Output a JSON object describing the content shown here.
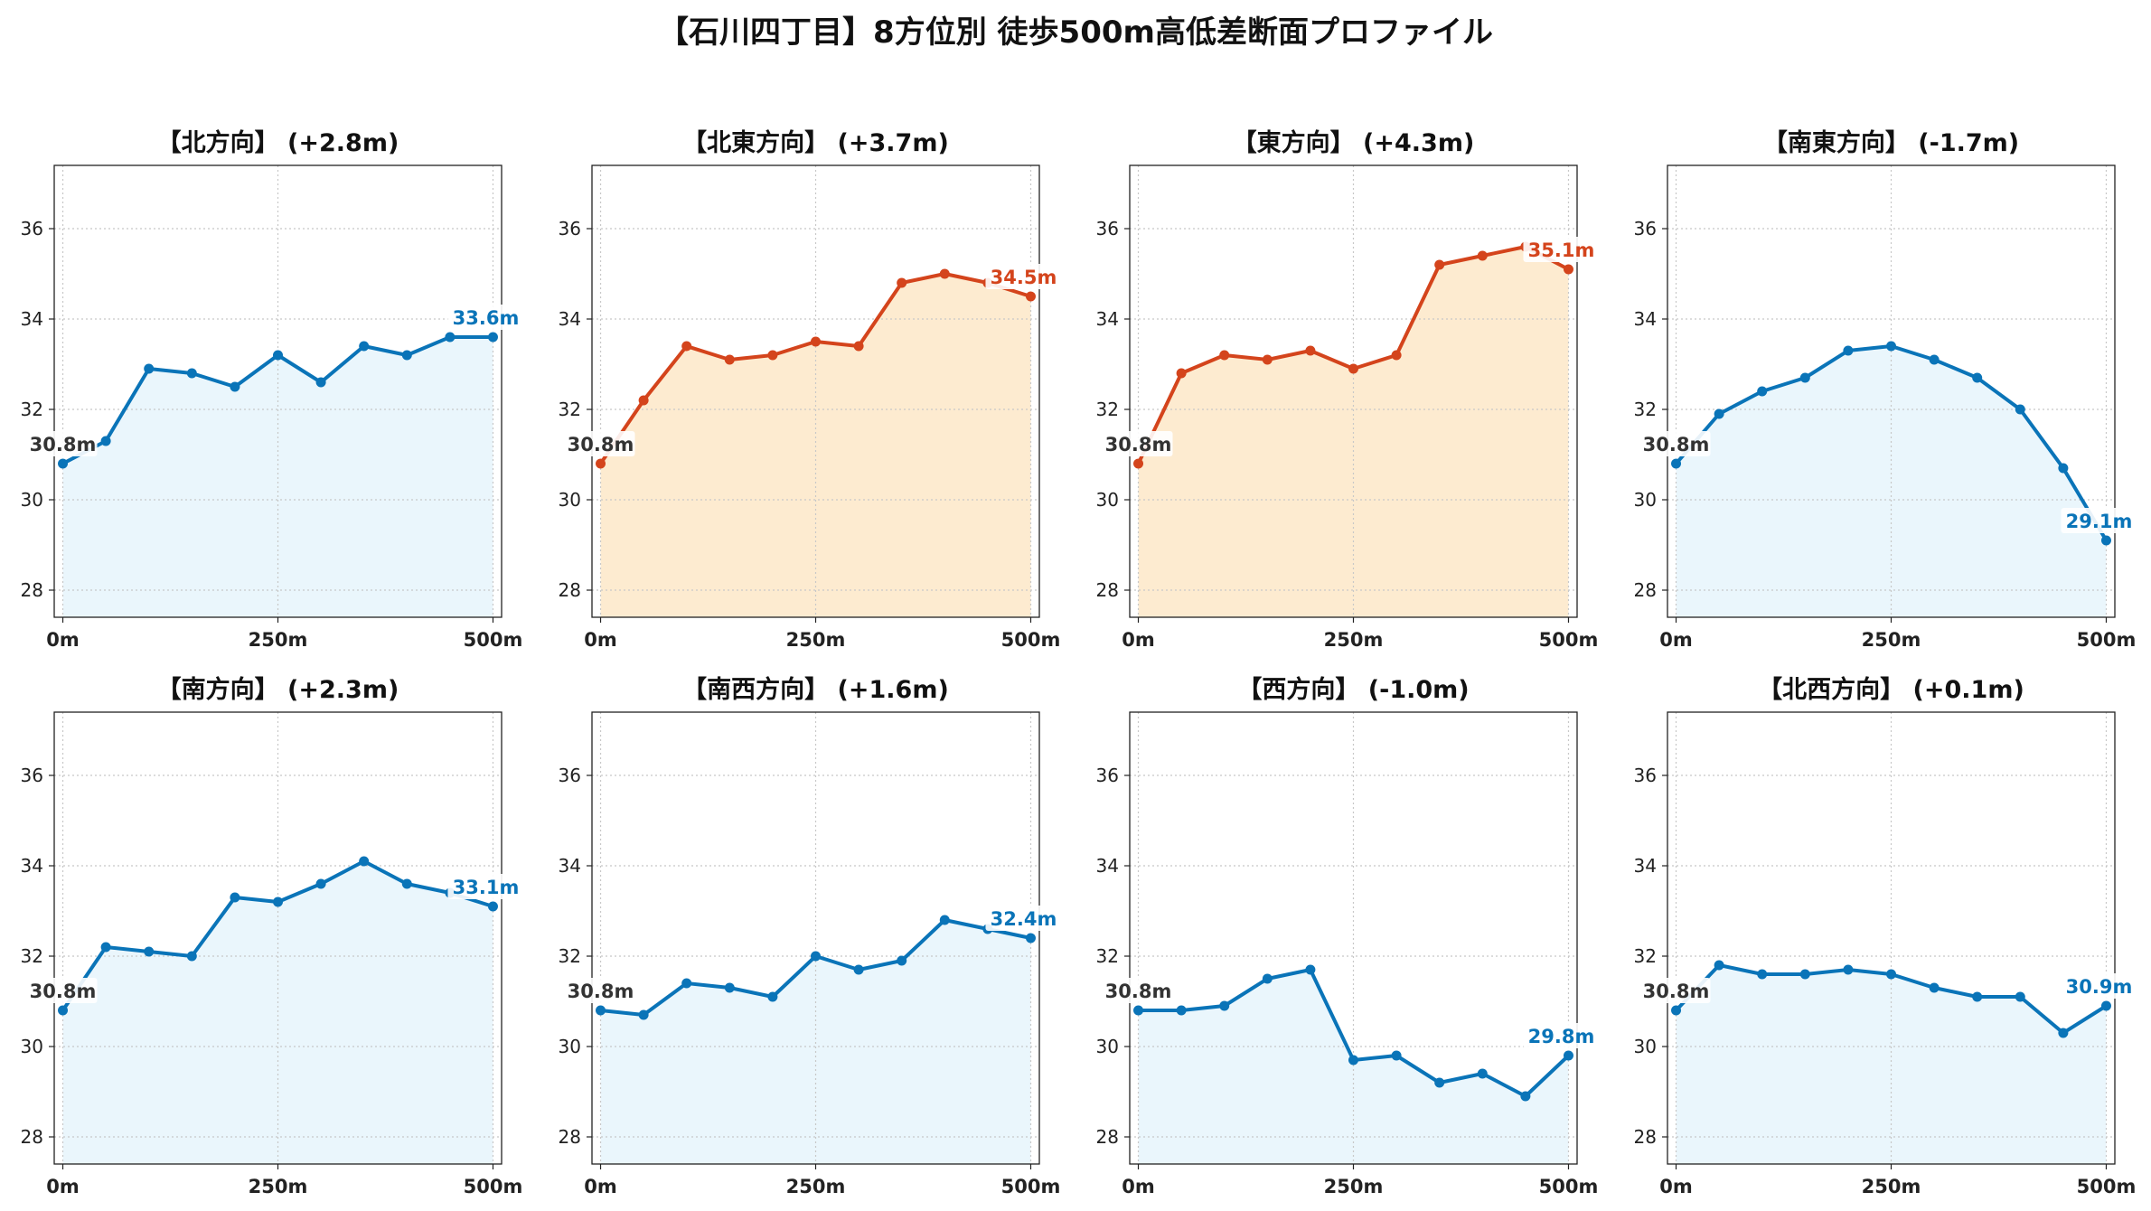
{
  "page": {
    "title": "【石川四丁目】8方位別 徒歩500m高低差断面プロファイル",
    "colors": {
      "uphill_line": "#d4441c",
      "uphill_fill": "#fdebd0",
      "flat_line": "#0a74b8",
      "flat_fill": "#eaf6fc",
      "start_label": "#333333"
    }
  },
  "chart_data": [
    {
      "type": "line",
      "title": "【北方向】 (+2.8m)",
      "trend": "flat",
      "start_label": "30.8m",
      "end_label": "33.6m",
      "x": [
        0,
        50,
        100,
        150,
        200,
        250,
        300,
        350,
        400,
        450,
        500
      ],
      "values": [
        30.8,
        31.3,
        32.9,
        32.8,
        32.5,
        33.2,
        32.6,
        33.4,
        33.2,
        33.6,
        33.6
      ],
      "xticks": [
        "0m",
        "250m",
        "500m"
      ],
      "yticks": [
        "28",
        "30",
        "32",
        "34",
        "36"
      ],
      "ylim": [
        27.4,
        37.4
      ],
      "xlim": [
        -10,
        510
      ],
      "grid": true
    },
    {
      "type": "line",
      "title": "【北東方向】 (+3.7m)",
      "trend": "uphill",
      "start_label": "30.8m",
      "end_label": "34.5m",
      "x": [
        0,
        50,
        100,
        150,
        200,
        250,
        300,
        350,
        400,
        450,
        500
      ],
      "values": [
        30.8,
        32.2,
        33.4,
        33.1,
        33.2,
        33.5,
        33.4,
        34.8,
        35.0,
        34.8,
        34.5
      ],
      "xticks": [
        "0m",
        "250m",
        "500m"
      ],
      "yticks": [
        "28",
        "30",
        "32",
        "34",
        "36"
      ],
      "ylim": [
        27.4,
        37.4
      ],
      "xlim": [
        -10,
        510
      ],
      "grid": true
    },
    {
      "type": "line",
      "title": "【東方向】 (+4.3m)",
      "trend": "uphill",
      "start_label": "30.8m",
      "end_label": "35.1m",
      "x": [
        0,
        50,
        100,
        150,
        200,
        250,
        300,
        350,
        400,
        450,
        500
      ],
      "values": [
        30.8,
        32.8,
        33.2,
        33.1,
        33.3,
        32.9,
        33.2,
        35.2,
        35.4,
        35.6,
        35.1
      ],
      "xticks": [
        "0m",
        "250m",
        "500m"
      ],
      "yticks": [
        "28",
        "30",
        "32",
        "34",
        "36"
      ],
      "ylim": [
        27.4,
        37.4
      ],
      "xlim": [
        -10,
        510
      ],
      "grid": true
    },
    {
      "type": "line",
      "title": "【南東方向】 (-1.7m)",
      "trend": "flat",
      "start_label": "30.8m",
      "end_label": "29.1m",
      "x": [
        0,
        50,
        100,
        150,
        200,
        250,
        300,
        350,
        400,
        450,
        500
      ],
      "values": [
        30.8,
        31.9,
        32.4,
        32.7,
        33.3,
        33.4,
        33.1,
        32.7,
        32.0,
        30.7,
        29.1
      ],
      "xticks": [
        "0m",
        "250m",
        "500m"
      ],
      "yticks": [
        "28",
        "30",
        "32",
        "34",
        "36"
      ],
      "ylim": [
        27.4,
        37.4
      ],
      "xlim": [
        -10,
        510
      ],
      "grid": true
    },
    {
      "type": "line",
      "title": "【南方向】 (+2.3m)",
      "trend": "flat",
      "start_label": "30.8m",
      "end_label": "33.1m",
      "x": [
        0,
        50,
        100,
        150,
        200,
        250,
        300,
        350,
        400,
        450,
        500
      ],
      "values": [
        30.8,
        32.2,
        32.1,
        32.0,
        33.3,
        33.2,
        33.6,
        34.1,
        33.6,
        33.4,
        33.1
      ],
      "xticks": [
        "0m",
        "250m",
        "500m"
      ],
      "yticks": [
        "28",
        "30",
        "32",
        "34",
        "36"
      ],
      "ylim": [
        27.4,
        37.4
      ],
      "xlim": [
        -10,
        510
      ],
      "grid": true
    },
    {
      "type": "line",
      "title": "【南西方向】 (+1.6m)",
      "trend": "flat",
      "start_label": "30.8m",
      "end_label": "32.4m",
      "x": [
        0,
        50,
        100,
        150,
        200,
        250,
        300,
        350,
        400,
        450,
        500
      ],
      "values": [
        30.8,
        30.7,
        31.4,
        31.3,
        31.1,
        32.0,
        31.7,
        31.9,
        32.8,
        32.6,
        32.4
      ],
      "xticks": [
        "0m",
        "250m",
        "500m"
      ],
      "yticks": [
        "28",
        "30",
        "32",
        "34",
        "36"
      ],
      "ylim": [
        27.4,
        37.4
      ],
      "xlim": [
        -10,
        510
      ],
      "grid": true
    },
    {
      "type": "line",
      "title": "【西方向】 (-1.0m)",
      "trend": "flat",
      "start_label": "30.8m",
      "end_label": "29.8m",
      "x": [
        0,
        50,
        100,
        150,
        200,
        250,
        300,
        350,
        400,
        450,
        500
      ],
      "values": [
        30.8,
        30.8,
        30.9,
        31.5,
        31.7,
        29.7,
        29.8,
        29.2,
        29.4,
        28.9,
        29.8
      ],
      "xticks": [
        "0m",
        "250m",
        "500m"
      ],
      "yticks": [
        "28",
        "30",
        "32",
        "34",
        "36"
      ],
      "ylim": [
        27.4,
        37.4
      ],
      "xlim": [
        -10,
        510
      ],
      "grid": true
    },
    {
      "type": "line",
      "title": "【北西方向】 (+0.1m)",
      "trend": "flat",
      "start_label": "30.8m",
      "end_label": "30.9m",
      "x": [
        0,
        50,
        100,
        150,
        200,
        250,
        300,
        350,
        400,
        450,
        500
      ],
      "values": [
        30.8,
        31.8,
        31.6,
        31.6,
        31.7,
        31.6,
        31.3,
        31.1,
        31.1,
        30.3,
        30.9
      ],
      "xticks": [
        "0m",
        "250m",
        "500m"
      ],
      "yticks": [
        "28",
        "30",
        "32",
        "34",
        "36"
      ],
      "ylim": [
        27.4,
        37.4
      ],
      "xlim": [
        -10,
        510
      ],
      "grid": true
    }
  ]
}
